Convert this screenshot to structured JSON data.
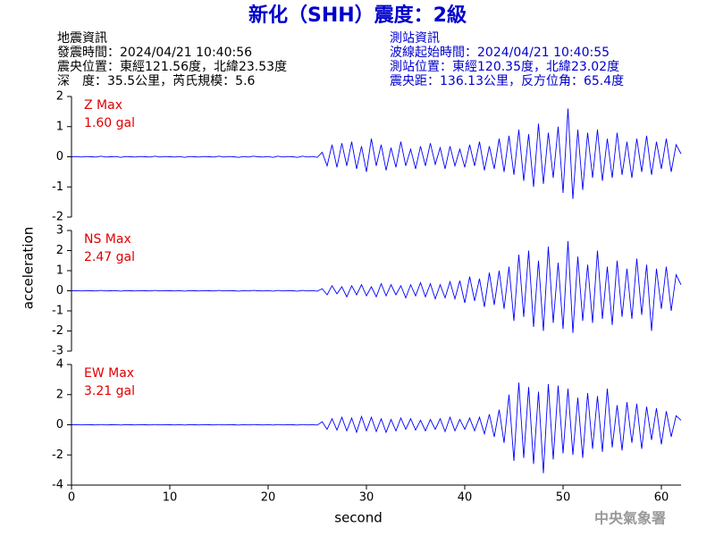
{
  "header": {
    "title": "新化（SHH）震度：2級",
    "quake_info": [
      "地震資訊",
      "發震時間：2024/04/21 10:40:56",
      "震央位置：東經121.56度，北緯23.53度",
      "深　度：35.5公里，芮氏規模：5.6"
    ],
    "station_info": [
      "測站資訊",
      "波線起始時間：2024/04/21 10:40:55",
      "測站位置：東經120.35度，北緯23.02度",
      "震央距：136.13公里，反方位角：65.4度"
    ],
    "footer": "中央氣象署"
  },
  "chart_data": [
    {
      "type": "line",
      "label": "Z Max",
      "max_label": "1.60 gal",
      "color": "#0000ff",
      "label_color": "#e00000",
      "xlim": [
        0,
        62
      ],
      "ylim": [
        -2,
        2
      ],
      "yticks": [
        -2,
        -1,
        0,
        1,
        2
      ],
      "x": [
        0,
        0.5,
        1,
        1.5,
        2,
        2.5,
        3,
        3.5,
        4,
        4.5,
        5,
        5.5,
        6,
        6.5,
        7,
        7.5,
        8,
        8.5,
        9,
        9.5,
        10,
        10.5,
        11,
        11.5,
        12,
        12.5,
        13,
        13.5,
        14,
        14.5,
        15,
        15.5,
        16,
        16.5,
        17,
        17.5,
        18,
        18.5,
        19,
        19.5,
        20,
        20.5,
        21,
        21.5,
        22,
        22.5,
        23,
        23.5,
        24,
        24.5,
        25,
        25.5,
        26,
        26.5,
        27,
        27.5,
        28,
        28.5,
        29,
        29.5,
        30,
        30.5,
        31,
        31.5,
        32,
        32.5,
        33,
        33.5,
        34,
        34.5,
        35,
        35.5,
        36,
        36.5,
        37,
        37.5,
        38,
        38.5,
        39,
        39.5,
        40,
        40.5,
        41,
        41.5,
        42,
        42.5,
        43,
        43.5,
        44,
        44.5,
        45,
        45.5,
        46,
        46.5,
        47,
        47.5,
        48,
        48.5,
        49,
        49.5,
        50,
        50.5,
        51,
        51.5,
        52,
        52.5,
        53,
        53.5,
        54,
        54.5,
        55,
        55.5,
        56,
        56.5,
        57,
        57.5,
        58,
        58.5,
        59,
        59.5,
        60,
        60.5,
        61,
        61.5,
        62
      ],
      "values": [
        0,
        0.01,
        -0.01,
        0.01,
        0,
        -0.01,
        0.02,
        -0.01,
        0,
        0.01,
        -0.02,
        0.01,
        0,
        -0.01,
        0.01,
        0,
        -0.01,
        0.02,
        -0.01,
        0.01,
        0,
        -0.01,
        0.01,
        -0.02,
        0.01,
        0,
        -0.01,
        0.01,
        0,
        -0.01,
        0.02,
        -0.01,
        0.01,
        0,
        -0.02,
        0.01,
        -0.01,
        0.02,
        0,
        -0.01,
        0.01,
        -0.02,
        0.02,
        -0.01,
        0.01,
        0,
        -0.02,
        0.02,
        -0.01,
        0.01,
        -0.02,
        0.15,
        -0.3,
        0.4,
        -0.35,
        0.45,
        -0.3,
        0.5,
        -0.4,
        0.35,
        -0.5,
        0.6,
        -0.3,
        0.4,
        -0.45,
        0.3,
        -0.35,
        0.5,
        -0.3,
        0.25,
        -0.4,
        0.35,
        -0.3,
        0.45,
        -0.25,
        0.3,
        -0.4,
        0.35,
        -0.3,
        0.25,
        -0.35,
        0.4,
        -0.3,
        0.5,
        -0.45,
        0.35,
        -0.4,
        0.6,
        -0.5,
        0.7,
        -0.6,
        0.9,
        -0.8,
        0.75,
        -1.0,
        1.1,
        -0.9,
        0.8,
        -0.7,
        1.0,
        -1.2,
        1.6,
        -1.4,
        0.9,
        -1.1,
        0.8,
        -0.7,
        0.9,
        -0.8,
        0.6,
        -0.7,
        0.8,
        -0.6,
        0.5,
        -0.7,
        0.6,
        -0.5,
        0.7,
        -0.6,
        0.5,
        -0.4,
        0.6,
        -0.5,
        0.4,
        0.1
      ]
    },
    {
      "type": "line",
      "label": "NS Max",
      "max_label": "2.47 gal",
      "color": "#0000ff",
      "label_color": "#e00000",
      "ylabel": "acceleration",
      "xlim": [
        0,
        62
      ],
      "ylim": [
        -3,
        3
      ],
      "yticks": [
        -3,
        -2,
        -1,
        0,
        1,
        2,
        3
      ],
      "x": [
        0,
        0.5,
        1,
        1.5,
        2,
        2.5,
        3,
        3.5,
        4,
        4.5,
        5,
        5.5,
        6,
        6.5,
        7,
        7.5,
        8,
        8.5,
        9,
        9.5,
        10,
        10.5,
        11,
        11.5,
        12,
        12.5,
        13,
        13.5,
        14,
        14.5,
        15,
        15.5,
        16,
        16.5,
        17,
        17.5,
        18,
        18.5,
        19,
        19.5,
        20,
        20.5,
        21,
        21.5,
        22,
        22.5,
        23,
        23.5,
        24,
        24.5,
        25,
        25.5,
        26,
        26.5,
        27,
        27.5,
        28,
        28.5,
        29,
        29.5,
        30,
        30.5,
        31,
        31.5,
        32,
        32.5,
        33,
        33.5,
        34,
        34.5,
        35,
        35.5,
        36,
        36.5,
        37,
        37.5,
        38,
        38.5,
        39,
        39.5,
        40,
        40.5,
        41,
        41.5,
        42,
        42.5,
        43,
        43.5,
        44,
        44.5,
        45,
        45.5,
        46,
        46.5,
        47,
        47.5,
        48,
        48.5,
        49,
        49.5,
        50,
        50.5,
        51,
        51.5,
        52,
        52.5,
        53,
        53.5,
        54,
        54.5,
        55,
        55.5,
        56,
        56.5,
        57,
        57.5,
        58,
        58.5,
        59,
        59.5,
        60,
        60.5,
        61,
        61.5,
        62
      ],
      "values": [
        0,
        0.01,
        -0.01,
        0.01,
        0,
        -0.01,
        0.02,
        -0.01,
        0,
        0.01,
        -0.02,
        0.01,
        0,
        -0.01,
        0.01,
        0,
        -0.01,
        0.02,
        -0.01,
        0.01,
        0,
        -0.01,
        0.01,
        -0.02,
        0.01,
        0,
        -0.01,
        0.01,
        0,
        -0.01,
        0.02,
        -0.01,
        0.01,
        0,
        -0.02,
        0.01,
        -0.01,
        0.02,
        0,
        -0.01,
        0.01,
        -0.02,
        0.02,
        -0.01,
        0.01,
        0,
        -0.02,
        0.02,
        -0.01,
        0.01,
        -0.02,
        0.1,
        -0.2,
        0.25,
        -0.15,
        0.2,
        -0.3,
        0.25,
        -0.2,
        0.3,
        -0.25,
        0.2,
        -0.3,
        0.35,
        -0.25,
        0.3,
        -0.2,
        0.25,
        -0.35,
        0.3,
        -0.25,
        0.4,
        -0.3,
        0.35,
        -0.4,
        0.3,
        -0.35,
        0.45,
        -0.4,
        0.5,
        -0.6,
        0.7,
        -0.5,
        0.6,
        -0.8,
        0.9,
        -0.7,
        1.0,
        -0.9,
        1.2,
        -1.5,
        1.8,
        -1.3,
        2.0,
        -1.8,
        1.5,
        -2.0,
        2.2,
        -1.6,
        1.4,
        -1.9,
        2.47,
        -2.1,
        1.7,
        -1.5,
        1.3,
        -1.6,
        2.0,
        -1.4,
        1.2,
        -1.7,
        1.5,
        -1.3,
        1.1,
        -1.4,
        1.6,
        -1.2,
        1.3,
        -2.0,
        1.1,
        -0.9,
        1.2,
        -1.0,
        0.8,
        0.3
      ]
    },
    {
      "type": "line",
      "label": "EW Max",
      "max_label": "3.21 gal",
      "color": "#0000ff",
      "label_color": "#e00000",
      "xlabel": "second",
      "xlim": [
        0,
        62
      ],
      "xticks": [
        0,
        10,
        20,
        30,
        40,
        50,
        60
      ],
      "ylim": [
        -4,
        4
      ],
      "yticks": [
        -4,
        -2,
        0,
        2,
        4
      ],
      "x": [
        0,
        0.5,
        1,
        1.5,
        2,
        2.5,
        3,
        3.5,
        4,
        4.5,
        5,
        5.5,
        6,
        6.5,
        7,
        7.5,
        8,
        8.5,
        9,
        9.5,
        10,
        10.5,
        11,
        11.5,
        12,
        12.5,
        13,
        13.5,
        14,
        14.5,
        15,
        15.5,
        16,
        16.5,
        17,
        17.5,
        18,
        18.5,
        19,
        19.5,
        20,
        20.5,
        21,
        21.5,
        22,
        22.5,
        23,
        23.5,
        24,
        24.5,
        25,
        25.5,
        26,
        26.5,
        27,
        27.5,
        28,
        28.5,
        29,
        29.5,
        30,
        30.5,
        31,
        31.5,
        32,
        32.5,
        33,
        33.5,
        34,
        34.5,
        35,
        35.5,
        36,
        36.5,
        37,
        37.5,
        38,
        38.5,
        39,
        39.5,
        40,
        40.5,
        41,
        41.5,
        42,
        42.5,
        43,
        43.5,
        44,
        44.5,
        45,
        45.5,
        46,
        46.5,
        47,
        47.5,
        48,
        48.5,
        49,
        49.5,
        50,
        50.5,
        51,
        51.5,
        52,
        52.5,
        53,
        53.5,
        54,
        54.5,
        55,
        55.5,
        56,
        56.5,
        57,
        57.5,
        58,
        58.5,
        59,
        59.5,
        60,
        60.5,
        61,
        61.5,
        62
      ],
      "values": [
        0,
        0.01,
        -0.01,
        0.01,
        0,
        -0.01,
        0.02,
        -0.01,
        0,
        0.01,
        -0.02,
        0.01,
        0,
        -0.01,
        0.01,
        0,
        -0.01,
        0.02,
        -0.01,
        0.01,
        0,
        -0.01,
        0.01,
        -0.02,
        0.01,
        0,
        -0.01,
        0.01,
        0,
        -0.01,
        0.02,
        -0.01,
        0.01,
        0,
        -0.02,
        0.01,
        -0.01,
        0.02,
        0,
        -0.01,
        0.01,
        -0.02,
        0.02,
        -0.01,
        0.01,
        0,
        -0.02,
        0.02,
        -0.01,
        0.01,
        -0.02,
        0.2,
        -0.3,
        0.4,
        -0.35,
        0.5,
        -0.4,
        0.45,
        -0.5,
        0.55,
        -0.4,
        0.5,
        -0.45,
        0.4,
        -0.5,
        0.35,
        -0.4,
        0.45,
        -0.3,
        0.4,
        -0.35,
        0.3,
        -0.4,
        0.35,
        -0.3,
        0.4,
        -0.45,
        0.5,
        -0.4,
        0.35,
        -0.3,
        0.45,
        -0.4,
        0.5,
        -0.6,
        0.7,
        -0.8,
        1.0,
        -1.2,
        2.0,
        -2.4,
        2.8,
        -2.2,
        2.5,
        -2.6,
        2.2,
        -3.21,
        2.7,
        -2.3,
        2.6,
        -1.9,
        2.4,
        -2.0,
        1.8,
        -2.2,
        2.1,
        -1.6,
        1.9,
        -1.8,
        2.4,
        -1.5,
        1.3,
        -1.7,
        1.5,
        -1.2,
        1.4,
        -1.6,
        1.2,
        -1.0,
        1.1,
        -1.3,
        0.9,
        -0.8,
        0.6,
        0.3
      ]
    }
  ]
}
